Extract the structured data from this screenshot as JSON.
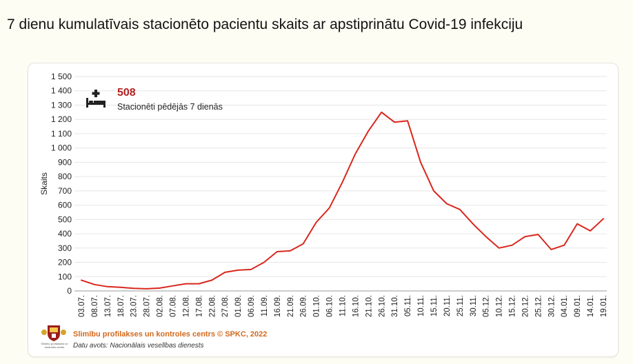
{
  "page": {
    "title": "7 dienu kumulatīvais stacionēto pacientu skaits ar apstiprinātu Covid-19 infekciju"
  },
  "kpi": {
    "value": "508",
    "label": "Stacionēti pēdējās 7 dienās",
    "icon": "hospital-bed-icon",
    "value_color": "#b22222"
  },
  "footer": {
    "copyright": "Slimību profilakses un kontroles centrs © SPKC, 2022",
    "source": "Datu avots: Nacionālais veselības dienests",
    "logo_caption": "Slimību profilakses un kontroles centrs",
    "copyright_color": "#d2691e"
  },
  "chart_data": {
    "type": "line",
    "ylabel": "Skaits",
    "ylim": [
      0,
      1500
    ],
    "yticks": [
      0,
      100,
      200,
      300,
      400,
      500,
      600,
      700,
      800,
      900,
      1000,
      1100,
      1200,
      1300,
      1400,
      1500
    ],
    "ytick_labels": [
      "0",
      "100",
      "200",
      "300",
      "400",
      "500",
      "600",
      "700",
      "800",
      "900",
      "1 000",
      "1 100",
      "1 200",
      "1 300",
      "1 400",
      "1 500"
    ],
    "xtick_labels": [
      "03.07.",
      "08.07.",
      "13.07.",
      "18.07.",
      "23.07.",
      "28.07.",
      "02.08.",
      "07.08.",
      "12.08.",
      "17.08.",
      "22.08.",
      "27.08.",
      "01.09.",
      "06.09.",
      "11.09.",
      "16.09.",
      "21.09.",
      "26.09.",
      "01.10.",
      "06.10.",
      "11.10.",
      "16.10.",
      "21.10.",
      "26.10.",
      "31.10.",
      "05.11.",
      "10.11.",
      "15.11.",
      "20.11.",
      "25.11.",
      "30.11.",
      "05.12.",
      "10.12.",
      "15.12.",
      "20.12.",
      "25.12.",
      "30.12.",
      "04.01.",
      "09.01.",
      "14.01.",
      "19.01."
    ],
    "grid": "horizontal",
    "line_color": "#d9261c",
    "series": [
      {
        "x": [
          "03.07.",
          "08.07.",
          "13.07.",
          "18.07.",
          "23.07.",
          "28.07.",
          "02.08.",
          "07.08.",
          "12.08.",
          "17.08.",
          "22.08.",
          "27.08.",
          "01.09.",
          "06.09.",
          "11.09.",
          "16.09.",
          "21.09.",
          "26.09.",
          "01.10.",
          "06.10.",
          "11.10.",
          "16.10.",
          "21.10.",
          "26.10.",
          "31.10.",
          "05.11.",
          "10.11.",
          "15.11.",
          "20.11.",
          "25.11.",
          "30.11.",
          "05.12.",
          "10.12.",
          "15.12.",
          "20.12.",
          "25.12.",
          "30.12.",
          "04.01.",
          "09.01.",
          "14.01.",
          "19.01."
        ],
        "values": [
          75,
          45,
          30,
          25,
          18,
          15,
          20,
          35,
          50,
          50,
          75,
          130,
          145,
          150,
          200,
          275,
          280,
          330,
          480,
          580,
          760,
          960,
          1120,
          1250,
          1180,
          1190,
          900,
          700,
          610,
          570,
          470,
          380,
          300,
          320,
          380,
          395,
          290,
          320,
          470,
          420,
          505
        ]
      }
    ]
  }
}
